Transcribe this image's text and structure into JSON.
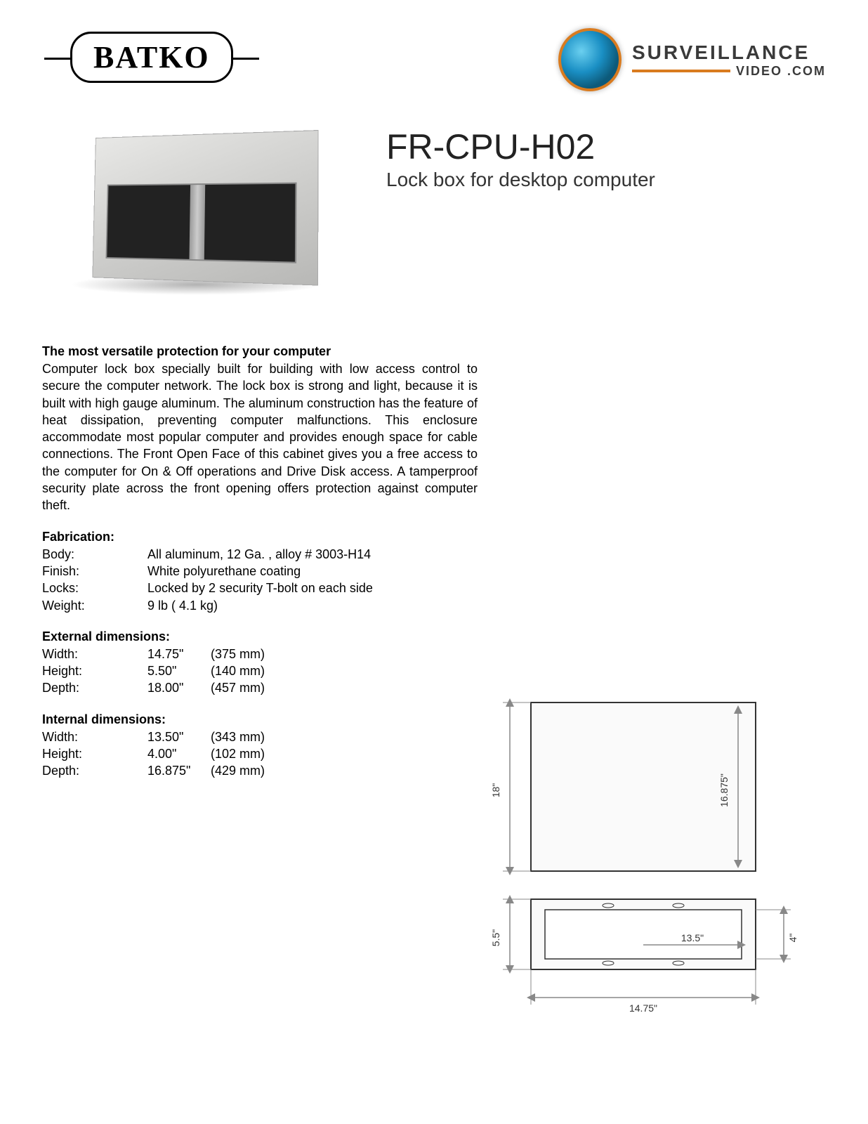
{
  "logos": {
    "batko": "BATKO",
    "sv_line1": "SURVEILLANCE",
    "sv_line2": "VIDEO .COM"
  },
  "product": {
    "code": "FR-CPU-H02",
    "subtitle": "Lock box for desktop computer"
  },
  "description": {
    "heading": "The most versatile protection for your computer",
    "body": "Computer lock box specially built for building with low access control to secure the computer network. The lock box is strong and light, because it is built with high gauge aluminum. The aluminum construction has the feature of heat dissipation, preventing computer malfunctions. This enclosure accommodate most popular computer and provides enough space for cable connections. The Front Open Face of this cabinet gives you a free access to the computer for On & Off operations and Drive Disk access. A tamperproof security plate across the front opening offers protection against computer theft."
  },
  "fabrication": {
    "heading": "Fabrication:",
    "rows": [
      {
        "label": "Body:",
        "value": "All aluminum, 12 Ga. , alloy # 3003-H14"
      },
      {
        "label": "Finish:",
        "value": "White polyurethane coating"
      },
      {
        "label": "Locks:",
        "value": "Locked by 2 security T-bolt on each side"
      },
      {
        "label": "Weight:",
        "value": "9 lb ( 4.1 kg)"
      }
    ]
  },
  "external": {
    "heading": "External dimensions:",
    "rows": [
      {
        "label": "Width:",
        "v1": "14.75\"",
        "v2": "(375 mm)"
      },
      {
        "label": "Height:",
        "v1": "5.50\"",
        "v2": "(140 mm)"
      },
      {
        "label": "Depth:",
        "v1": "18.00\"",
        "v2": "(457 mm)"
      }
    ]
  },
  "internal": {
    "heading": "Internal dimensions:",
    "rows": [
      {
        "label": "Width:",
        "v1": "13.50\"",
        "v2": "(343 mm)"
      },
      {
        "label": "Height:",
        "v1": "4.00\"",
        "v2": "(102 mm)"
      },
      {
        "label": "Depth:",
        "v1": "16.875\"",
        "v2": "(429 mm)"
      }
    ]
  },
  "drawing": {
    "dim_18": "18\"",
    "dim_16875": "16.875\"",
    "dim_55": "5.5\"",
    "dim_135": "13.5\"",
    "dim_4": "4\"",
    "dim_1475": "14.75\"",
    "stroke_color": "#333333",
    "arrow_color": "#888888",
    "fill_color": "#fafafa"
  }
}
